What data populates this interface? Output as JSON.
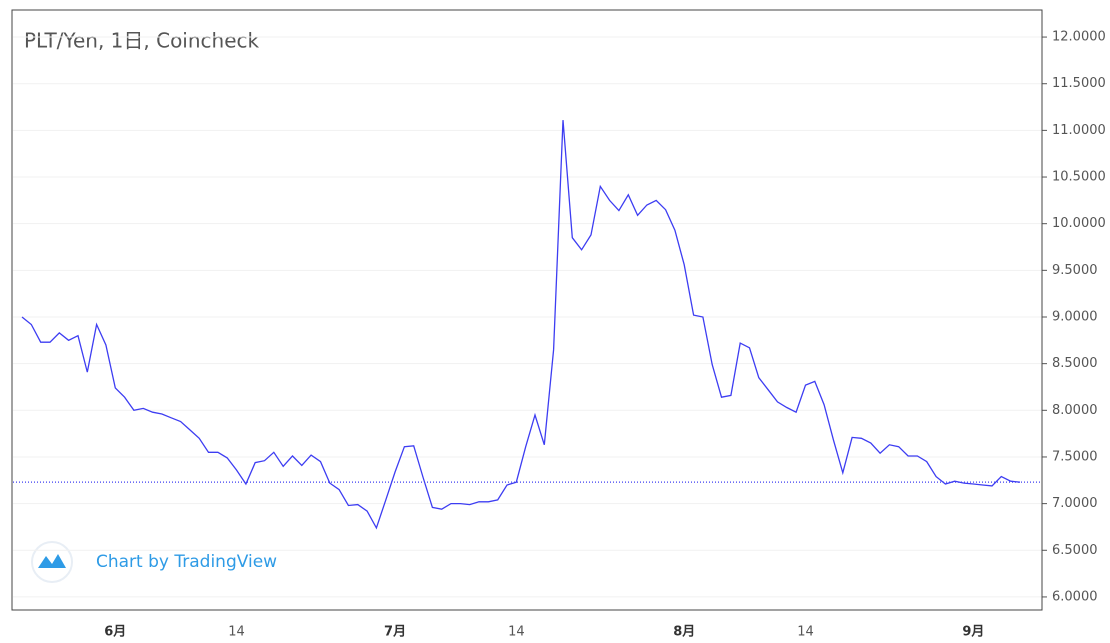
{
  "chart_data": {
    "type": "line",
    "title": "PLT/Yen, 1日, Coincheck",
    "watermark": "Chart by TradingView",
    "categories": [
      null,
      null,
      null,
      null,
      null,
      null,
      null,
      null,
      null,
      null,
      "6月",
      null,
      null,
      null,
      null,
      null,
      null,
      null,
      null,
      null,
      null,
      null,
      null,
      "14",
      null,
      null,
      null,
      null,
      null,
      null,
      null,
      null,
      null,
      null,
      null,
      null,
      null,
      null,
      null,
      null,
      "7月",
      null,
      null,
      null,
      null,
      null,
      null,
      null,
      null,
      null,
      null,
      null,
      null,
      "14",
      null,
      null,
      null,
      null,
      null,
      null,
      null,
      null,
      null,
      null,
      null,
      null,
      null,
      null,
      null,
      null,
      null,
      "8月",
      null,
      null,
      null,
      null,
      null,
      null,
      null,
      null,
      null,
      null,
      null,
      null,
      "14",
      null,
      null,
      null,
      null,
      null,
      null,
      null,
      null,
      null,
      null,
      null,
      null,
      null,
      null,
      null,
      null,
      null,
      "9月",
      null,
      null,
      null,
      null,
      null
    ],
    "series": [
      {
        "name": "PLT/Yen",
        "color": "#3d3df2",
        "values": [
          9.0,
          8.92,
          8.73,
          8.73,
          8.83,
          8.75,
          8.8,
          8.41,
          8.92,
          8.7,
          8.24,
          8.14,
          8.0,
          8.02,
          7.98,
          7.96,
          7.92,
          7.88,
          7.79,
          7.7,
          7.55,
          7.55,
          7.49,
          7.36,
          7.21,
          7.44,
          7.46,
          7.55,
          7.4,
          7.51,
          7.41,
          7.52,
          7.45,
          7.22,
          7.15,
          6.98,
          6.99,
          6.92,
          6.74,
          7.04,
          7.34,
          7.61,
          7.62,
          7.28,
          6.96,
          6.94,
          7.0,
          7.0,
          6.99,
          7.02,
          7.02,
          7.04,
          7.2,
          7.23,
          7.61,
          7.95,
          7.63,
          8.65,
          11.11,
          9.85,
          9.72,
          9.88,
          10.4,
          10.25,
          10.14,
          10.31,
          10.09,
          10.2,
          10.25,
          10.15,
          9.93,
          9.56,
          9.02,
          9.0,
          8.49,
          8.14,
          8.16,
          8.72,
          8.67,
          8.35,
          8.22,
          8.09,
          8.03,
          7.98,
          8.27,
          8.31,
          8.06,
          7.68,
          7.33,
          7.71,
          7.7,
          7.65,
          7.54,
          7.63,
          7.61,
          7.51,
          7.51,
          7.45,
          7.29,
          7.21,
          7.24,
          7.22,
          7.21,
          7.2,
          7.19,
          7.29,
          7.24,
          7.23
        ]
      }
    ],
    "ylim": [
      5.86,
      12.29
    ],
    "yticks": [
      {
        "value": 6,
        "label": "6.0000"
      },
      {
        "value": 6.5,
        "label": "6.5000"
      },
      {
        "value": 7,
        "label": "7.0000"
      },
      {
        "value": 7.5,
        "label": "7.5000"
      },
      {
        "value": 8,
        "label": "8.0000"
      },
      {
        "value": 8.5,
        "label": "8.5000"
      },
      {
        "value": 9,
        "label": "9.0000"
      },
      {
        "value": 9.5,
        "label": "9.5000"
      },
      {
        "value": 10,
        "label": "10.0000"
      },
      {
        "value": 10.5,
        "label": "10.5000"
      },
      {
        "value": 11,
        "label": "11.0000"
      },
      {
        "value": 11.5,
        "label": "11.5000"
      },
      {
        "value": 12,
        "label": "12.0000"
      }
    ],
    "grid": true
  }
}
